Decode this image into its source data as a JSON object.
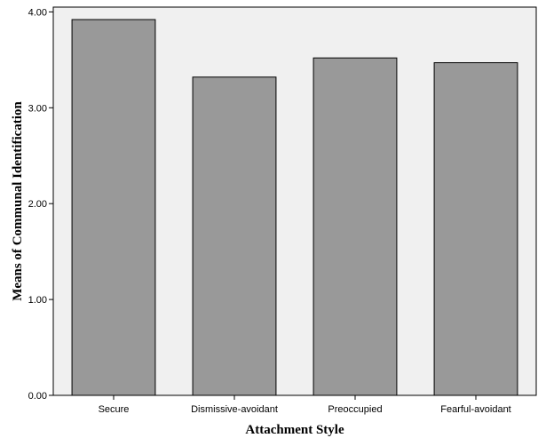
{
  "chart_data": {
    "type": "bar",
    "title": "",
    "xlabel": "Attachment Style",
    "ylabel": "Means of Communal Identification",
    "categories": [
      "Secure",
      "Dismissive-avoidant",
      "Preoccupied",
      "Fearful-avoidant"
    ],
    "values": [
      3.92,
      3.32,
      3.52,
      3.47
    ],
    "ylim": [
      0,
      4.05
    ],
    "yticks": [
      "0.00",
      "1.00",
      "2.00",
      "3.00",
      "4.00"
    ],
    "grid": false,
    "legend": "none",
    "colors": {
      "plot_background": "#f0f0f0",
      "bar_fill": "#999999",
      "bar_stroke": "#000000"
    }
  }
}
